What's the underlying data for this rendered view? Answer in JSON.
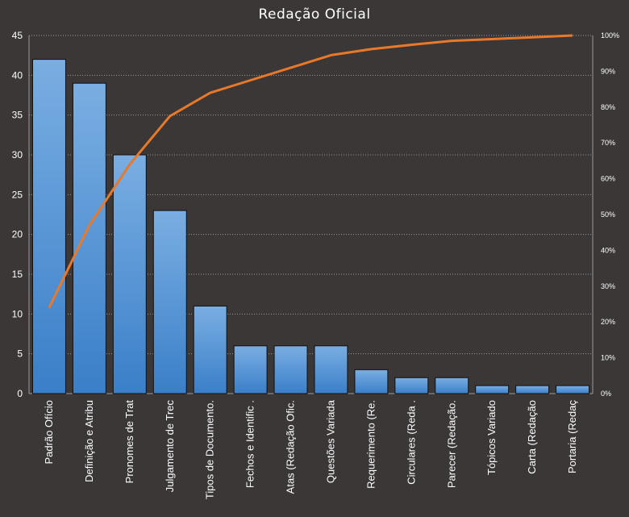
{
  "chart_data": {
    "type": "bar",
    "title": "Redação Oficial",
    "categories": [
      "Padrão Ofício",
      "Definição e Atribu",
      "Pronomes de Trat",
      "Julgamento de Trec",
      "Tipos de Documento.",
      "Fechos e Identific .",
      "Atas (Redação Ofic.",
      "Questões Variada",
      "Requerimento (Re.",
      "Circulares (Reda .",
      "Parecer (Redação.",
      "Tópicos Variado",
      "Carta (Redação",
      "Portaria (Redaç"
    ],
    "series": [
      {
        "type": "bar",
        "axis": "left",
        "values": [
          42,
          39,
          30,
          23,
          11,
          6,
          6,
          6,
          3,
          2,
          2,
          1,
          1,
          1
        ]
      },
      {
        "type": "line",
        "axis": "right",
        "values": [
          0.24,
          0.47,
          0.64,
          0.775,
          0.84,
          0.875,
          0.91,
          0.945,
          0.962,
          0.974,
          0.985,
          0.99,
          0.995,
          1.0
        ]
      }
    ],
    "left_axis": {
      "ylim": [
        0,
        45
      ],
      "ticks": [
        "0",
        "5",
        "10",
        "15",
        "20",
        "25",
        "30",
        "35",
        "40",
        "45"
      ]
    },
    "right_axis": {
      "ylim": [
        0,
        1
      ],
      "ticks": [
        "0%",
        "10%",
        "20%",
        "30%",
        "40%",
        "50%",
        "60%",
        "70%",
        "80%",
        "90%",
        "100%"
      ]
    },
    "grid": "horizontal-dotted",
    "legend": "none",
    "colors": {
      "background": "#3a3736",
      "bar_top": "#7aaee2",
      "bar_bottom": "#3a7fc9",
      "line": "#e8792b",
      "grid": "#9a9a9a",
      "text": "#ffffff"
    }
  }
}
